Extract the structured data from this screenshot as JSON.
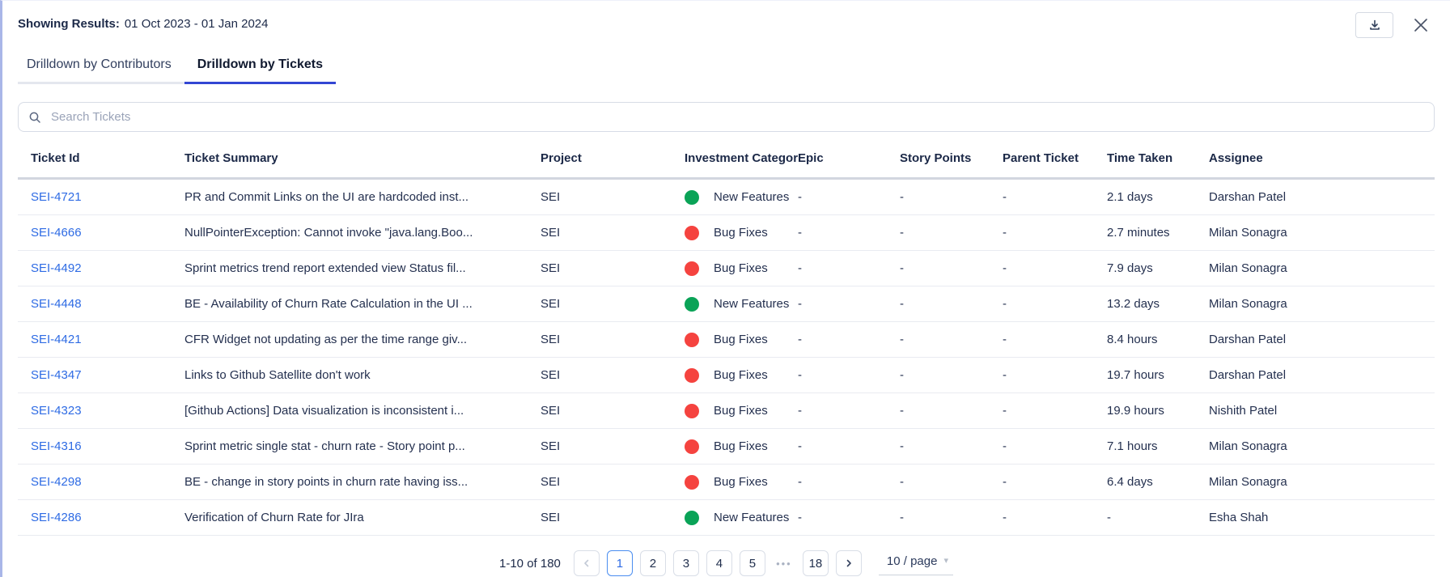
{
  "header": {
    "showing_results_label": "Showing Results:",
    "date_range": "01 Oct 2023 - 01 Jan 2024"
  },
  "tabs": [
    {
      "label": "Drilldown by Contributors",
      "active": false
    },
    {
      "label": "Drilldown by Tickets",
      "active": true
    }
  ],
  "search": {
    "placeholder": "Search Tickets"
  },
  "table": {
    "columns": [
      "Ticket Id",
      "Ticket Summary",
      "Project",
      "Investment Category",
      "Epic",
      "Story Points",
      "Parent Ticket",
      "Time Taken",
      "Assignee"
    ],
    "rows": [
      {
        "ticket_id": "SEI-4721",
        "summary": "PR and Commit Links on the UI are hardcoded inst...",
        "project": "SEI",
        "category": "New Features",
        "category_color": "#0aa357",
        "epic": "-",
        "story_points": "-",
        "parent_ticket": "-",
        "time_taken": "2.1 days",
        "assignee": "Darshan Patel"
      },
      {
        "ticket_id": "SEI-4666",
        "summary": "NullPointerException: Cannot invoke \"java.lang.Boo...",
        "project": "SEI",
        "category": "Bug Fixes",
        "category_color": "#f5433f",
        "epic": "-",
        "story_points": "-",
        "parent_ticket": "-",
        "time_taken": "2.7 minutes",
        "assignee": "Milan Sonagra"
      },
      {
        "ticket_id": "SEI-4492",
        "summary": "Sprint metrics trend report extended view Status fil...",
        "project": "SEI",
        "category": "Bug Fixes",
        "category_color": "#f5433f",
        "epic": "-",
        "story_points": "-",
        "parent_ticket": "-",
        "time_taken": "7.9 days",
        "assignee": "Milan Sonagra"
      },
      {
        "ticket_id": "SEI-4448",
        "summary": "BE - Availability of Churn Rate Calculation in the UI ...",
        "project": "SEI",
        "category": "New Features",
        "category_color": "#0aa357",
        "epic": "-",
        "story_points": "-",
        "parent_ticket": "-",
        "time_taken": "13.2 days",
        "assignee": "Milan Sonagra"
      },
      {
        "ticket_id": "SEI-4421",
        "summary": "CFR Widget not updating as per the time range giv...",
        "project": "SEI",
        "category": "Bug Fixes",
        "category_color": "#f5433f",
        "epic": "-",
        "story_points": "-",
        "parent_ticket": "-",
        "time_taken": "8.4 hours",
        "assignee": "Darshan Patel"
      },
      {
        "ticket_id": "SEI-4347",
        "summary": "Links to Github Satellite don't work",
        "project": "SEI",
        "category": "Bug Fixes",
        "category_color": "#f5433f",
        "epic": "-",
        "story_points": "-",
        "parent_ticket": "-",
        "time_taken": "19.7 hours",
        "assignee": "Darshan Patel"
      },
      {
        "ticket_id": "SEI-4323",
        "summary": "[Github Actions] Data visualization is inconsistent i...",
        "project": "SEI",
        "category": "Bug Fixes",
        "category_color": "#f5433f",
        "epic": "-",
        "story_points": "-",
        "parent_ticket": "-",
        "time_taken": "19.9 hours",
        "assignee": "Nishith Patel"
      },
      {
        "ticket_id": "SEI-4316",
        "summary": "Sprint metric single stat - churn rate - Story point p...",
        "project": "SEI",
        "category": "Bug Fixes",
        "category_color": "#f5433f",
        "epic": "-",
        "story_points": "-",
        "parent_ticket": "-",
        "time_taken": "7.1 hours",
        "assignee": "Milan Sonagra"
      },
      {
        "ticket_id": "SEI-4298",
        "summary": "BE - change in story points in churn rate having iss...",
        "project": "SEI",
        "category": "Bug Fixes",
        "category_color": "#f5433f",
        "epic": "-",
        "story_points": "-",
        "parent_ticket": "-",
        "time_taken": "6.4 days",
        "assignee": "Milan Sonagra"
      },
      {
        "ticket_id": "SEI-4286",
        "summary": "Verification of Churn Rate for JIra",
        "project": "SEI",
        "category": "New Features",
        "category_color": "#0aa357",
        "epic": "-",
        "story_points": "-",
        "parent_ticket": "-",
        "time_taken": "-",
        "assignee": "Esha Shah"
      }
    ]
  },
  "pagination": {
    "range_text": "1-10 of 180",
    "current_page": "1",
    "pages": [
      "1",
      "2",
      "3",
      "4",
      "5"
    ],
    "ellipsis": "•••",
    "last_page": "18",
    "page_size_label": "10 / page"
  },
  "colors": {
    "accent_blue": "#3346d3",
    "link_blue": "#2e6be4",
    "new_features_green": "#0aa357",
    "bug_fixes_red": "#f5433f",
    "panel_edge": "#a9b6e8"
  }
}
